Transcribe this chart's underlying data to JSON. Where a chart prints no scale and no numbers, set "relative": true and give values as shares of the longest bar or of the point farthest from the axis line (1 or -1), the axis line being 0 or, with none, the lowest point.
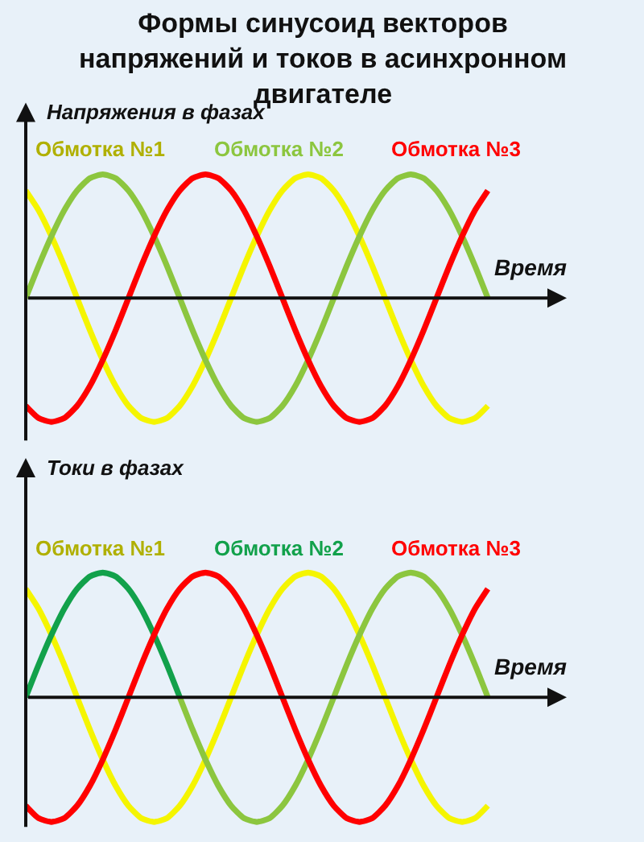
{
  "chart_data": [
    {
      "type": "line",
      "title": "Формы синусоид векторов\nнапряжений и токов в асинхронном\nдвигателе",
      "ylabel": "Напряжения в фазах",
      "xlabel": "Время",
      "relative": true,
      "categories": [
        null,
        null,
        null,
        null,
        null,
        null,
        null,
        null,
        null,
        null,
        null,
        null,
        null,
        null,
        null,
        null,
        null,
        null,
        null,
        null,
        null,
        null,
        null,
        null,
        null,
        null,
        null,
        null,
        null,
        null,
        null,
        null,
        null,
        null,
        null,
        null,
        null
      ],
      "series": [
        {
          "name": "Обмотка №1",
          "color": "#f5f500",
          "values": [
            0.87,
            0.71,
            0.5,
            0.26,
            0,
            -0.26,
            -0.5,
            -0.71,
            -0.87,
            -0.97,
            -1,
            -0.97,
            -0.87,
            -0.71,
            -0.5,
            -0.26,
            0,
            0.26,
            0.5,
            0.71,
            0.87,
            0.97,
            1,
            0.97,
            0.87,
            0.71,
            0.5,
            0.26,
            0,
            -0.26,
            -0.5,
            -0.71,
            -0.87,
            -0.97,
            -1,
            -0.97,
            -0.87
          ]
        },
        {
          "name": "Обмотка №2",
          "color": "#8cc63f",
          "values": [
            0,
            0.26,
            0.5,
            0.71,
            0.87,
            0.97,
            1,
            0.97,
            0.87,
            0.71,
            0.5,
            0.26,
            0,
            -0.26,
            -0.5,
            -0.71,
            -0.87,
            -0.97,
            -1,
            -0.97,
            -0.87,
            -0.71,
            -0.5,
            -0.26,
            0,
            0.26,
            0.5,
            0.71,
            0.87,
            0.97,
            1,
            0.97,
            0.87,
            0.71,
            0.5,
            0.26,
            0
          ]
        },
        {
          "name": "Обмотка №3",
          "color": "#ff0000",
          "values": [
            -0.87,
            -0.97,
            -1,
            -0.97,
            -0.87,
            -0.71,
            -0.5,
            -0.26,
            0,
            0.26,
            0.5,
            0.71,
            0.87,
            0.97,
            1,
            0.97,
            0.87,
            0.71,
            0.5,
            0.26,
            0,
            -0.26,
            -0.5,
            -0.71,
            -0.87,
            -0.97,
            -1,
            -0.97,
            -0.87,
            -0.71,
            -0.5,
            -0.26,
            0,
            0.26,
            0.5,
            0.71,
            0.87
          ]
        }
      ]
    },
    {
      "type": "line",
      "ylabel": "Токи в фазах",
      "xlabel": "Время",
      "relative": true,
      "categories": [
        null,
        null,
        null,
        null,
        null,
        null,
        null,
        null,
        null,
        null,
        null,
        null,
        null,
        null,
        null,
        null,
        null,
        null,
        null,
        null,
        null,
        null,
        null,
        null,
        null,
        null,
        null,
        null,
        null,
        null,
        null,
        null,
        null,
        null,
        null,
        null,
        null
      ],
      "series": [
        {
          "name": "Обмотка №1",
          "color": "#f5f500",
          "values": [
            0.87,
            0.71,
            0.5,
            0.26,
            0,
            -0.26,
            -0.5,
            -0.71,
            -0.87,
            -0.97,
            -1,
            -0.97,
            -0.87,
            -0.71,
            -0.5,
            -0.26,
            0,
            0.26,
            0.5,
            0.71,
            0.87,
            0.97,
            1,
            0.97,
            0.87,
            0.71,
            0.5,
            0.26,
            0,
            -0.26,
            -0.5,
            -0.71,
            -0.87,
            -0.97,
            -1,
            -0.97,
            -0.87
          ]
        },
        {
          "name": "Обмотка №2",
          "color": "#12a14b",
          "values": [
            0,
            0.26,
            0.5,
            0.71,
            0.87,
            0.97,
            1,
            0.97,
            0.87,
            0.71,
            0.5,
            0.26,
            0,
            null,
            null,
            null,
            null,
            null,
            null,
            null,
            null,
            null,
            null,
            null,
            null,
            null,
            null,
            null,
            null,
            null,
            null,
            null,
            null,
            null,
            null,
            null,
            null
          ]
        },
        {
          "color": "#8cc63f",
          "values": [
            null,
            null,
            null,
            null,
            null,
            null,
            null,
            null,
            null,
            null,
            null,
            null,
            0,
            -0.26,
            -0.5,
            -0.71,
            -0.87,
            -0.97,
            -1,
            -0.97,
            -0.87,
            -0.71,
            -0.5,
            -0.26,
            0,
            0.26,
            0.5,
            0.71,
            0.87,
            0.97,
            1,
            0.97,
            0.87,
            0.71,
            0.5,
            0.26,
            0
          ]
        },
        {
          "name": "Обмотка №3",
          "color": "#ff0000",
          "values": [
            -0.87,
            -0.97,
            -1,
            -0.97,
            -0.87,
            -0.71,
            -0.5,
            -0.26,
            0,
            0.26,
            0.5,
            0.71,
            0.87,
            0.97,
            1,
            0.97,
            0.87,
            0.71,
            0.5,
            0.26,
            0,
            -0.26,
            -0.5,
            -0.71,
            -0.87,
            -0.97,
            -1,
            -0.97,
            -0.87,
            -0.71,
            -0.5,
            -0.26,
            0,
            0.26,
            0.5,
            0.71,
            0.87
          ]
        }
      ]
    }
  ]
}
